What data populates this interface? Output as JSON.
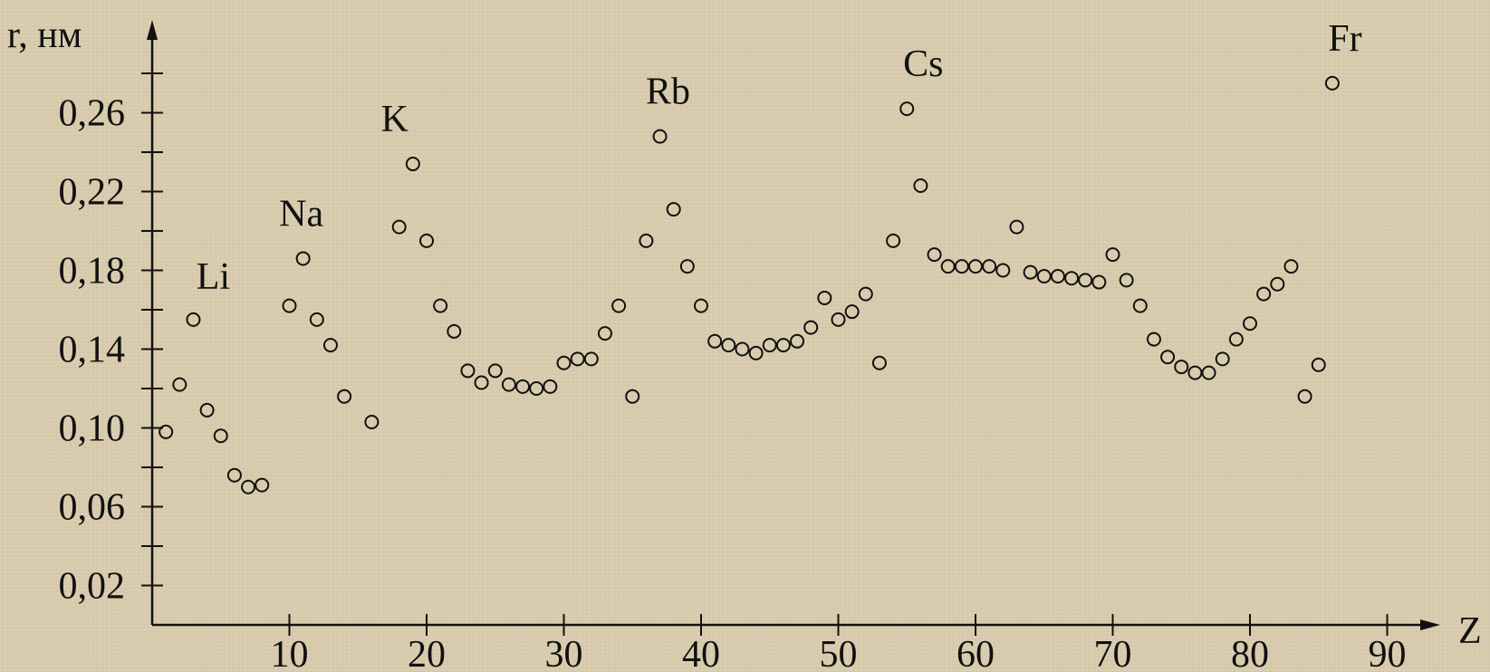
{
  "chart_data": {
    "type": "scatter",
    "ylabel": "r, нм",
    "xlabel": "Z",
    "xlim": [
      0,
      95
    ],
    "ylim": [
      0,
      0.28
    ],
    "x_ticks": [
      {
        "value": 10,
        "label": "10"
      },
      {
        "value": 20,
        "label": "20"
      },
      {
        "value": 30,
        "label": "30"
      },
      {
        "value": 40,
        "label": "40"
      },
      {
        "value": 50,
        "label": "50"
      },
      {
        "value": 60,
        "label": "60"
      },
      {
        "value": 70,
        "label": "70"
      },
      {
        "value": 80,
        "label": "80"
      },
      {
        "value": 90,
        "label": "90"
      }
    ],
    "y_ticks": [
      {
        "value": 0.02,
        "label": "0,02"
      },
      {
        "value": 0.06,
        "label": "0,06"
      },
      {
        "value": 0.1,
        "label": "0,10"
      },
      {
        "value": 0.14,
        "label": "0,14"
      },
      {
        "value": 0.18,
        "label": "0,18"
      },
      {
        "value": 0.22,
        "label": "0,22"
      },
      {
        "value": 0.26,
        "label": "0,26"
      }
    ],
    "grid": false,
    "points": [
      [
        1,
        0.098
      ],
      [
        2,
        0.122
      ],
      [
        3,
        0.155
      ],
      [
        4,
        0.109
      ],
      [
        5,
        0.096
      ],
      [
        6,
        0.076
      ],
      [
        7,
        0.07
      ],
      [
        8,
        0.071
      ],
      [
        10,
        0.162
      ],
      [
        11,
        0.186
      ],
      [
        12,
        0.155
      ],
      [
        13,
        0.142
      ],
      [
        14,
        0.116
      ],
      [
        16,
        0.103
      ],
      [
        18,
        0.202
      ],
      [
        19,
        0.234
      ],
      [
        20,
        0.195
      ],
      [
        21,
        0.162
      ],
      [
        22,
        0.149
      ],
      [
        23,
        0.129
      ],
      [
        24,
        0.123
      ],
      [
        25,
        0.129
      ],
      [
        26,
        0.122
      ],
      [
        27,
        0.121
      ],
      [
        28,
        0.12
      ],
      [
        29,
        0.121
      ],
      [
        30,
        0.133
      ],
      [
        31,
        0.135
      ],
      [
        32,
        0.135
      ],
      [
        33,
        0.148
      ],
      [
        34,
        0.162
      ],
      [
        35,
        0.116
      ],
      [
        36,
        0.195
      ],
      [
        37,
        0.248
      ],
      [
        38,
        0.211
      ],
      [
        39,
        0.182
      ],
      [
        40,
        0.162
      ],
      [
        41,
        0.144
      ],
      [
        42,
        0.142
      ],
      [
        43,
        0.14
      ],
      [
        44,
        0.138
      ],
      [
        45,
        0.142
      ],
      [
        46,
        0.142
      ],
      [
        47,
        0.144
      ],
      [
        48,
        0.151
      ],
      [
        49,
        0.166
      ],
      [
        50,
        0.155
      ],
      [
        51,
        0.159
      ],
      [
        52,
        0.168
      ],
      [
        53,
        0.133
      ],
      [
        54,
        0.195
      ],
      [
        55,
        0.262
      ],
      [
        56,
        0.223
      ],
      [
        57,
        0.188
      ],
      [
        58,
        0.182
      ],
      [
        59,
        0.182
      ],
      [
        60,
        0.182
      ],
      [
        61,
        0.182
      ],
      [
        62,
        0.18
      ],
      [
        63,
        0.202
      ],
      [
        64,
        0.179
      ],
      [
        65,
        0.177
      ],
      [
        66,
        0.177
      ],
      [
        67,
        0.176
      ],
      [
        68,
        0.175
      ],
      [
        69,
        0.174
      ],
      [
        70,
        0.188
      ],
      [
        71,
        0.175
      ],
      [
        72,
        0.162
      ],
      [
        73,
        0.145
      ],
      [
        74,
        0.136
      ],
      [
        75,
        0.131
      ],
      [
        76,
        0.128
      ],
      [
        77,
        0.128
      ],
      [
        78,
        0.135
      ],
      [
        79,
        0.145
      ],
      [
        80,
        0.153
      ],
      [
        81,
        0.168
      ],
      [
        82,
        0.173
      ],
      [
        83,
        0.182
      ],
      [
        84,
        0.116
      ],
      [
        85,
        0.132
      ],
      [
        86,
        0.275
      ]
    ],
    "annotations": [
      {
        "text": "Li",
        "x": 3,
        "y": 0.155
      },
      {
        "text": "Na",
        "x": 11,
        "y": 0.186
      },
      {
        "text": "K",
        "x": 19,
        "y": 0.234
      },
      {
        "text": "Rb",
        "x": 37,
        "y": 0.248
      },
      {
        "text": "Cs",
        "x": 55,
        "y": 0.262
      },
      {
        "text": "Fr",
        "x": 86,
        "y": 0.275
      }
    ]
  }
}
